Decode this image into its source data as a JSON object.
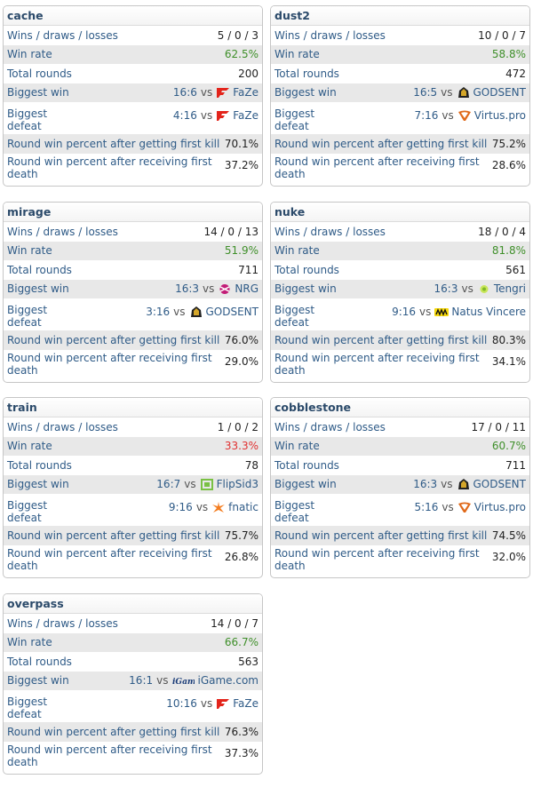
{
  "labels": {
    "wdl": "Wins / draws / losses",
    "win_rate": "Win rate",
    "total_rounds": "Total rounds",
    "biggest_win": "Biggest win",
    "biggest_defeat_1": "Biggest",
    "biggest_defeat_2": "defeat",
    "rwp_first_kill": "Round win percent after getting first kill",
    "rwp_first_death_1": "Round win percent after receiving first",
    "rwp_first_death_2": "death",
    "vs": "vs"
  },
  "maps": [
    {
      "name": "cache",
      "wdl": "5 / 0 / 3",
      "win_rate": "62.5%",
      "win_rate_color": "green",
      "total_rounds": "200",
      "biggest_win_score": "16:6",
      "biggest_win_team": "FaZe",
      "biggest_win_logo": "faze-logo-icon",
      "biggest_defeat_score": "4:16",
      "biggest_defeat_team": "FaZe",
      "biggest_defeat_logo": "faze-logo-icon",
      "rwp_first_kill": "70.1%",
      "rwp_first_death": "37.2%"
    },
    {
      "name": "dust2",
      "wdl": "10 / 0 / 7",
      "win_rate": "58.8%",
      "win_rate_color": "green",
      "total_rounds": "472",
      "biggest_win_score": "16:5",
      "biggest_win_team": "GODSENT",
      "biggest_win_logo": "godsent-logo-icon",
      "biggest_defeat_score": "7:16",
      "biggest_defeat_team": "Virtus.pro",
      "biggest_defeat_logo": "virtuspro-logo-icon",
      "rwp_first_kill": "75.2%",
      "rwp_first_death": "28.6%"
    },
    {
      "name": "mirage",
      "wdl": "14 / 0 / 13",
      "win_rate": "51.9%",
      "win_rate_color": "green",
      "total_rounds": "711",
      "biggest_win_score": "16:3",
      "biggest_win_team": "NRG",
      "biggest_win_logo": "nrg-logo-icon",
      "biggest_defeat_score": "3:16",
      "biggest_defeat_team": "GODSENT",
      "biggest_defeat_logo": "godsent-logo-icon",
      "rwp_first_kill": "76.0%",
      "rwp_first_death": "29.0%"
    },
    {
      "name": "nuke",
      "wdl": "18 / 0 / 4",
      "win_rate": "81.8%",
      "win_rate_color": "green",
      "total_rounds": "561",
      "biggest_win_score": "16:3",
      "biggest_win_team": "Tengri",
      "biggest_win_logo": "tengri-logo-icon",
      "biggest_defeat_score": "9:16",
      "biggest_defeat_team": "Natus Vincere",
      "biggest_defeat_logo": "navi-logo-icon",
      "rwp_first_kill": "80.3%",
      "rwp_first_death": "34.1%"
    },
    {
      "name": "train",
      "wdl": "1 / 0 / 2",
      "win_rate": "33.3%",
      "win_rate_color": "red",
      "total_rounds": "78",
      "biggest_win_score": "16:7",
      "biggest_win_team": "FlipSid3",
      "biggest_win_logo": "flipsid3-logo-icon",
      "biggest_defeat_score": "9:16",
      "biggest_defeat_team": "fnatic",
      "biggest_defeat_logo": "fnatic-logo-icon",
      "rwp_first_kill": "75.7%",
      "rwp_first_death": "26.8%"
    },
    {
      "name": "cobblestone",
      "wdl": "17 / 0 / 11",
      "win_rate": "60.7%",
      "win_rate_color": "green",
      "total_rounds": "711",
      "biggest_win_score": "16:3",
      "biggest_win_team": "GODSENT",
      "biggest_win_logo": "godsent-logo-icon",
      "biggest_defeat_score": "5:16",
      "biggest_defeat_team": "Virtus.pro",
      "biggest_defeat_logo": "virtuspro-logo-icon",
      "rwp_first_kill": "74.5%",
      "rwp_first_death": "32.0%"
    },
    {
      "name": "overpass",
      "wdl": "14 / 0 / 7",
      "win_rate": "66.7%",
      "win_rate_color": "green",
      "total_rounds": "563",
      "biggest_win_score": "16:1",
      "biggest_win_team": "iGame.com",
      "biggest_win_logo": "igame-logo-icon",
      "biggest_defeat_score": "10:16",
      "biggest_defeat_team": "FaZe",
      "biggest_defeat_logo": "faze-logo-icon",
      "rwp_first_kill": "76.3%",
      "rwp_first_death": "37.3%"
    }
  ],
  "colors": {
    "green": "#3f8f2a",
    "red": "#e03131",
    "label_blue": "#2f5b87",
    "title": "#2b4a6a",
    "alt_row": "#e8e8e8"
  }
}
